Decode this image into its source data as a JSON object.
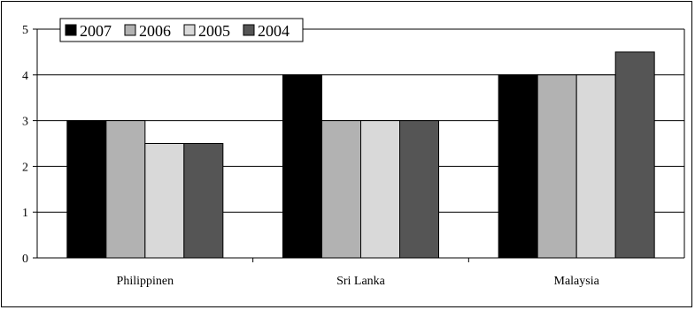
{
  "chart_data": {
    "type": "bar",
    "title": "",
    "xlabel": "",
    "ylabel": "",
    "categories": [
      "Philippinen",
      "Sri Lanka",
      "Malaysia"
    ],
    "series": [
      {
        "name": "2007",
        "values": [
          3,
          4,
          4
        ],
        "color": "#000000"
      },
      {
        "name": "2006",
        "values": [
          3,
          3,
          4
        ],
        "color": "#b2b2b2"
      },
      {
        "name": "2005",
        "values": [
          2.5,
          3,
          4
        ],
        "color": "#d9d9d9"
      },
      {
        "name": "2004",
        "values": [
          2.5,
          3,
          4.5
        ],
        "color": "#555555"
      }
    ],
    "ylim": [
      0,
      5
    ],
    "yticks": [
      0,
      1,
      2,
      3,
      4,
      5
    ],
    "grid": true,
    "legend": "top-left"
  }
}
